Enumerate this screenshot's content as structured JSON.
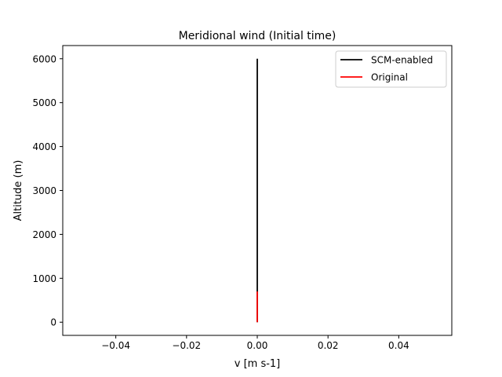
{
  "chart_data": {
    "type": "line",
    "title": "Meridional wind (Initial time)",
    "xlabel": "v [m s-1]",
    "ylabel": "Altitude (m)",
    "xlim": [
      -0.055,
      0.055
    ],
    "ylim": [
      -300,
      6300
    ],
    "xticks": [
      -0.04,
      -0.02,
      0.0,
      0.02,
      0.04
    ],
    "xtick_labels": [
      "−0.04",
      "−0.02",
      "0.00",
      "0.02",
      "0.04"
    ],
    "yticks": [
      0,
      1000,
      2000,
      3000,
      4000,
      5000,
      6000
    ],
    "ytick_labels": [
      "0",
      "1000",
      "2000",
      "3000",
      "4000",
      "5000",
      "6000"
    ],
    "grid": false,
    "legend_position": "upper right",
    "series": [
      {
        "name": "SCM-enabled",
        "color": "#000000",
        "x": [
          0.0,
          0.0
        ],
        "y": [
          0,
          6000
        ]
      },
      {
        "name": "Original",
        "color": "#ff0000",
        "x": [
          0.0,
          0.0
        ],
        "y": [
          0,
          700
        ]
      }
    ]
  }
}
